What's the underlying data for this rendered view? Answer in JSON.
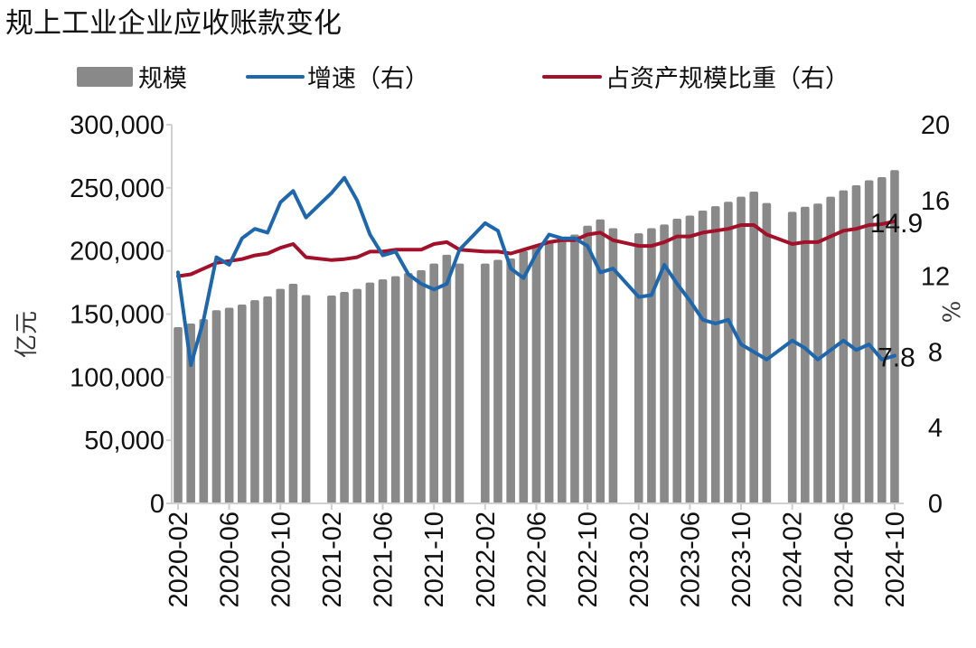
{
  "chart_data": {
    "type": "bar+line",
    "title": "规上工业企业应收账款变化",
    "legend": {
      "placement": "top",
      "entries": [
        "规模",
        "增速（右）",
        "占资产规模比重（右）"
      ]
    },
    "ylabel_left": "亿元",
    "ylabel_right": "%",
    "ylim_left": [
      0,
      300000
    ],
    "ylim_right": [
      0,
      20
    ],
    "yticks_left": [
      "0",
      "50,000",
      "100,000",
      "150,000",
      "200,000",
      "250,000",
      "300,000"
    ],
    "yticks_left_values": [
      0,
      50000,
      100000,
      150000,
      200000,
      250000,
      300000
    ],
    "yticks_right": [
      "0",
      "4",
      "8",
      "12",
      "16",
      "20"
    ],
    "yticks_right_values": [
      0,
      4,
      8,
      12,
      16,
      20
    ],
    "grid": false,
    "categories": [
      "2020-02",
      "2020-03",
      "2020-04",
      "2020-05",
      "2020-06",
      "2020-07",
      "2020-08",
      "2020-09",
      "2020-10",
      "2020-11",
      "2020-12",
      "2021-01",
      "2021-02",
      "2021-03",
      "2021-04",
      "2021-05",
      "2021-06",
      "2021-07",
      "2021-08",
      "2021-09",
      "2021-10",
      "2021-11",
      "2021-12",
      "2022-01",
      "2022-02",
      "2022-03",
      "2022-04",
      "2022-05",
      "2022-06",
      "2022-07",
      "2022-08",
      "2022-09",
      "2022-10",
      "2022-11",
      "2022-12",
      "2023-01",
      "2023-02",
      "2023-03",
      "2023-04",
      "2023-05",
      "2023-06",
      "2023-07",
      "2023-08",
      "2023-09",
      "2023-10",
      "2023-11",
      "2023-12",
      "2024-01",
      "2024-02",
      "2024-03",
      "2024-04",
      "2024-05",
      "2024-06",
      "2024-07",
      "2024-08",
      "2024-09",
      "2024-10"
    ],
    "xtick_labels": [
      "2020-02",
      "2020-06",
      "2020-10",
      "2021-02",
      "2021-06",
      "2021-10",
      "2022-02",
      "2022-06",
      "2022-10",
      "2023-02",
      "2023-06",
      "2023-10",
      "2024-02",
      "2024-06",
      "2024-10"
    ],
    "series": [
      {
        "name": "规模",
        "type": "bar",
        "axis": "left",
        "color": "#898989",
        "values": [
          139600,
          142500,
          146000,
          153000,
          155000,
          157500,
          161000,
          164000,
          170000,
          174000,
          165000,
          null,
          164700,
          167500,
          170000,
          175000,
          177500,
          180000,
          182500,
          184700,
          190000,
          197000,
          190000,
          null,
          190000,
          193000,
          194000,
          200000,
          204000,
          208000,
          210000,
          213000,
          220000,
          225000,
          218000,
          null,
          214000,
          218000,
          221000,
          225500,
          228000,
          232000,
          235500,
          239000,
          243000,
          247000,
          238000,
          null,
          231000,
          235000,
          237500,
          243000,
          248000,
          252000,
          256000,
          258500,
          264000
        ]
      },
      {
        "name": "增速（右）",
        "type": "line",
        "axis": "right",
        "color": "#1f67ad",
        "values": [
          12.2,
          7.3,
          9.7,
          13.0,
          12.6,
          14.0,
          14.5,
          14.3,
          15.9,
          16.5,
          15.1,
          null,
          16.4,
          17.2,
          16.0,
          14.2,
          13.1,
          13.3,
          12.1,
          11.6,
          11.3,
          11.6,
          13.4,
          null,
          14.8,
          14.4,
          12.4,
          11.9,
          13.2,
          14.2,
          14.0,
          14.0,
          13.6,
          12.2,
          12.4,
          null,
          10.9,
          11.0,
          12.6,
          11.6,
          10.7,
          9.7,
          9.5,
          9.7,
          8.4,
          8.0,
          7.6,
          null,
          8.6,
          8.2,
          7.6,
          8.1,
          8.6,
          8.1,
          8.4,
          7.6,
          7.8
        ]
      },
      {
        "name": "占资产规模比重（右）",
        "type": "line",
        "axis": "right",
        "color": "#a3102a",
        "values": [
          12.0,
          12.1,
          12.4,
          12.7,
          12.8,
          12.9,
          13.1,
          13.2,
          13.5,
          13.7,
          13.0,
          null,
          12.85,
          12.9,
          13.0,
          13.3,
          13.3,
          13.4,
          13.4,
          13.4,
          13.7,
          13.8,
          13.4,
          null,
          13.3,
          13.3,
          13.2,
          13.4,
          13.6,
          13.8,
          13.9,
          13.9,
          14.2,
          14.3,
          13.9,
          null,
          13.6,
          13.6,
          13.8,
          14.1,
          14.1,
          14.3,
          14.4,
          14.5,
          14.7,
          14.7,
          14.2,
          null,
          13.7,
          13.8,
          13.8,
          14.1,
          14.4,
          14.5,
          14.7,
          14.75,
          14.9
        ]
      }
    ],
    "annotations": [
      {
        "series": "占资产规模比重（右）",
        "text": "14.9"
      },
      {
        "series": "增速（右）",
        "text": "7.8"
      }
    ]
  }
}
